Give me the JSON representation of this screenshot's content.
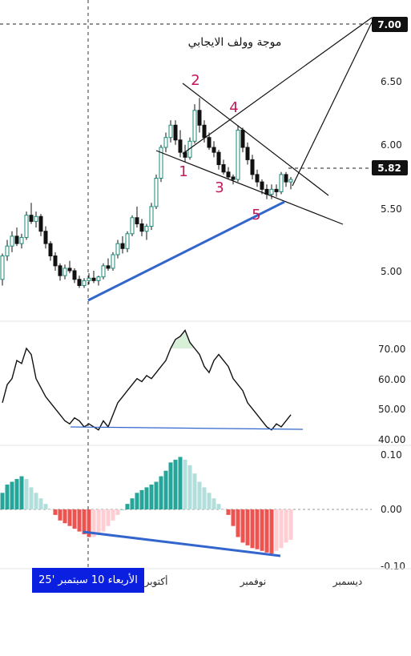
{
  "chart_data": [
    {
      "type": "candlestick",
      "title": "موجة وولف الايجابي",
      "price_axis": {
        "ticks": [
          "7.00",
          "6.50",
          "6.00",
          "5.82",
          "5.50",
          "5.00"
        ],
        "highlighted": [
          "7.00",
          "5.82"
        ]
      },
      "ylim": [
        4.7,
        7.12
      ],
      "x_labels": [
        "أكتوبر",
        "نوفمبر",
        "ديسمبر"
      ],
      "crosshair_label": "الأربعاء 10 سبتمبر '25",
      "wave_points": [
        "1",
        "2",
        "3",
        "4",
        "5"
      ],
      "colors": {
        "up": "#26a69a",
        "down": "#111111",
        "trendline": "#3366cc",
        "wave_label": "#c2185b"
      },
      "candles": [
        [
          4.93,
          5.14,
          4.88,
          5.12
        ],
        [
          5.12,
          5.25,
          5.08,
          5.2
        ],
        [
          5.2,
          5.32,
          5.15,
          5.28
        ],
        [
          5.28,
          5.35,
          5.2,
          5.22
        ],
        [
          5.22,
          5.3,
          5.18,
          5.27
        ],
        [
          5.27,
          5.48,
          5.25,
          5.45
        ],
        [
          5.45,
          5.55,
          5.38,
          5.4
        ],
        [
          5.4,
          5.48,
          5.35,
          5.44
        ],
        [
          5.44,
          5.46,
          5.28,
          5.32
        ],
        [
          5.32,
          5.36,
          5.18,
          5.22
        ],
        [
          5.22,
          5.24,
          5.08,
          5.12
        ],
        [
          5.12,
          5.15,
          5.0,
          5.04
        ],
        [
          5.04,
          5.06,
          4.92,
          4.96
        ],
        [
          4.96,
          5.05,
          4.93,
          5.02
        ],
        [
          5.02,
          5.08,
          4.98,
          5.0
        ],
        [
          5.0,
          5.02,
          4.9,
          4.93
        ],
        [
          4.93,
          4.96,
          4.86,
          4.88
        ],
        [
          4.88,
          4.94,
          4.86,
          4.92
        ],
        [
          4.92,
          4.98,
          4.89,
          4.94
        ],
        [
          4.94,
          5.0,
          4.9,
          4.92
        ],
        [
          4.92,
          4.96,
          4.88,
          4.95
        ],
        [
          4.95,
          5.06,
          4.93,
          5.04
        ],
        [
          5.04,
          5.1,
          5.0,
          5.02
        ],
        [
          5.02,
          5.15,
          5.0,
          5.13
        ],
        [
          5.13,
          5.25,
          5.1,
          5.22
        ],
        [
          5.22,
          5.28,
          5.14,
          5.18
        ],
        [
          5.18,
          5.32,
          5.15,
          5.3
        ],
        [
          5.3,
          5.45,
          5.28,
          5.43
        ],
        [
          5.43,
          5.52,
          5.35,
          5.38
        ],
        [
          5.38,
          5.42,
          5.28,
          5.32
        ],
        [
          5.32,
          5.38,
          5.25,
          5.36
        ],
        [
          5.36,
          5.55,
          5.33,
          5.52
        ],
        [
          5.52,
          5.78,
          5.5,
          5.75
        ],
        [
          5.75,
          6.02,
          5.72,
          6.0
        ],
        [
          6.0,
          6.12,
          5.96,
          6.08
        ],
        [
          6.08,
          6.22,
          6.04,
          6.18
        ],
        [
          6.18,
          6.22,
          6.02,
          6.06
        ],
        [
          6.06,
          6.14,
          5.92,
          5.96
        ],
        [
          5.96,
          6.02,
          5.88,
          5.92
        ],
        [
          5.92,
          6.08,
          5.9,
          6.05
        ],
        [
          6.05,
          6.35,
          6.03,
          6.3
        ],
        [
          6.3,
          6.4,
          6.12,
          6.18
        ],
        [
          6.18,
          6.22,
          6.04,
          6.08
        ],
        [
          6.08,
          6.12,
          5.98,
          6.0
        ],
        [
          6.0,
          6.05,
          5.92,
          5.96
        ],
        [
          5.96,
          5.98,
          5.82,
          5.86
        ],
        [
          5.86,
          5.9,
          5.78,
          5.8
        ],
        [
          5.8,
          5.84,
          5.74,
          5.76
        ],
        [
          5.76,
          5.78,
          5.7,
          5.74
        ],
        [
          5.74,
          6.18,
          5.72,
          6.14
        ],
        [
          6.14,
          6.16,
          5.96,
          6.0
        ],
        [
          6.0,
          6.04,
          5.86,
          5.9
        ],
        [
          5.9,
          5.94,
          5.74,
          5.78
        ],
        [
          5.78,
          5.82,
          5.68,
          5.72
        ],
        [
          5.72,
          5.74,
          5.62,
          5.66
        ],
        [
          5.66,
          5.7,
          5.58,
          5.62
        ],
        [
          5.62,
          5.7,
          5.58,
          5.66
        ],
        [
          5.66,
          5.7,
          5.6,
          5.64
        ],
        [
          5.64,
          5.8,
          5.62,
          5.78
        ],
        [
          5.78,
          5.8,
          5.68,
          5.72
        ],
        [
          5.72,
          5.76,
          5.66,
          5.74
        ]
      ]
    },
    {
      "type": "line",
      "name": "RSI",
      "y_ticks": [
        "70.00",
        "60.00",
        "50.00",
        "40.00"
      ],
      "ylim": [
        40,
        78
      ],
      "values": [
        52,
        58,
        60,
        66,
        65,
        70,
        68,
        60,
        57,
        54,
        52,
        50,
        48,
        46,
        45,
        47,
        46,
        44,
        45,
        44,
        43,
        46,
        44,
        48,
        52,
        54,
        56,
        58,
        60,
        59,
        61,
        60,
        62,
        64,
        66,
        70,
        73,
        74,
        76,
        72,
        70,
        68,
        64,
        62,
        66,
        68,
        66,
        64,
        60,
        58,
        56,
        52,
        50,
        48,
        46,
        44,
        43,
        45,
        44,
        46,
        48
      ]
    },
    {
      "type": "bar",
      "name": "MACD histogram",
      "y_ticks": [
        "0.10",
        "0.00",
        "-0.10"
      ],
      "ylim": [
        -0.1,
        0.1
      ],
      "values": [
        0.03,
        0.045,
        0.05,
        0.055,
        0.06,
        0.055,
        0.04,
        0.03,
        0.02,
        0.01,
        0.0,
        -0.01,
        -0.02,
        -0.025,
        -0.03,
        -0.035,
        -0.04,
        -0.045,
        -0.05,
        -0.05,
        -0.045,
        -0.04,
        -0.03,
        -0.02,
        -0.01,
        0.0,
        0.01,
        0.02,
        0.03,
        0.035,
        0.04,
        0.045,
        0.05,
        0.06,
        0.07,
        0.085,
        0.09,
        0.095,
        0.09,
        0.08,
        0.065,
        0.05,
        0.04,
        0.03,
        0.02,
        0.01,
        0.0,
        -0.01,
        -0.03,
        -0.05,
        -0.06,
        -0.065,
        -0.07,
        -0.072,
        -0.075,
        -0.078,
        -0.08,
        -0.075,
        -0.07,
        -0.06,
        -0.055
      ]
    }
  ]
}
